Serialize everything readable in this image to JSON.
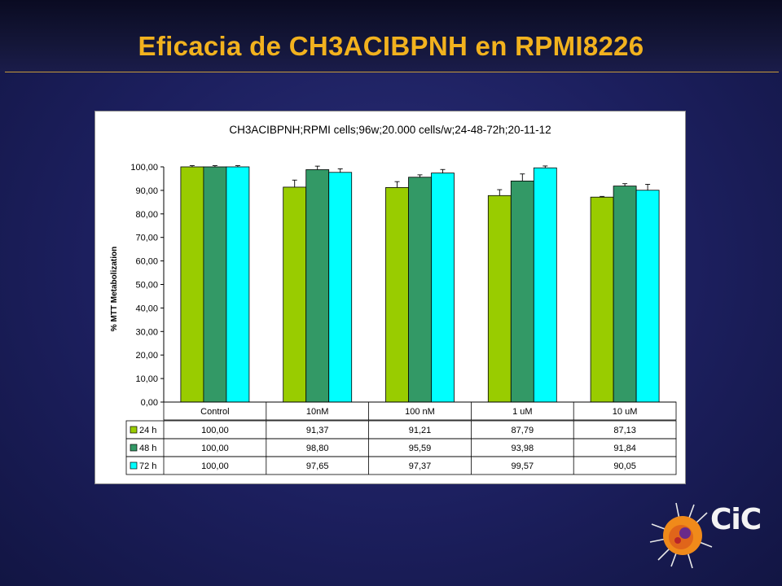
{
  "slide": {
    "title": "Eficacia de CH3ACIBPNH en RPMI8226",
    "logo_text": "CiC"
  },
  "chart_data": {
    "type": "bar",
    "title": "CH3ACIBPNH;RPMI cells;96w;20.000 cells/w;24-48-72h;20-11-12",
    "xlabel": "",
    "ylabel": "% MTT Metabolization",
    "ylim": [
      0,
      100
    ],
    "yticks": [
      "0,00",
      "10,00",
      "20,00",
      "30,00",
      "40,00",
      "50,00",
      "60,00",
      "70,00",
      "80,00",
      "90,00",
      "100,00"
    ],
    "categories": [
      "Control",
      "10nM",
      "100 nM",
      "1 uM",
      "10 uM"
    ],
    "series": [
      {
        "name": "24 h",
        "color": "#99cc00",
        "values": [
          100.0,
          91.37,
          91.21,
          87.79,
          87.13
        ],
        "labels": [
          "100,00",
          "91,37",
          "91,21",
          "87,79",
          "87,13"
        ],
        "errors": [
          0.5,
          3.0,
          2.5,
          2.5,
          0.3
        ]
      },
      {
        "name": "48 h",
        "color": "#339966",
        "values": [
          100.0,
          98.8,
          95.59,
          93.98,
          91.84
        ],
        "labels": [
          "100,00",
          "98,80",
          "95,59",
          "93,98",
          "91,84"
        ],
        "errors": [
          0.5,
          1.5,
          1.0,
          3.0,
          1.0
        ]
      },
      {
        "name": "72 h",
        "color": "#00ffff",
        "values": [
          100.0,
          97.65,
          97.37,
          99.57,
          90.05
        ],
        "labels": [
          "100,00",
          "97,65",
          "97,37",
          "99,57",
          "90,05"
        ],
        "errors": [
          0.5,
          1.5,
          1.5,
          0.8,
          2.5
        ]
      }
    ],
    "legend": "data-table",
    "grid": false
  }
}
